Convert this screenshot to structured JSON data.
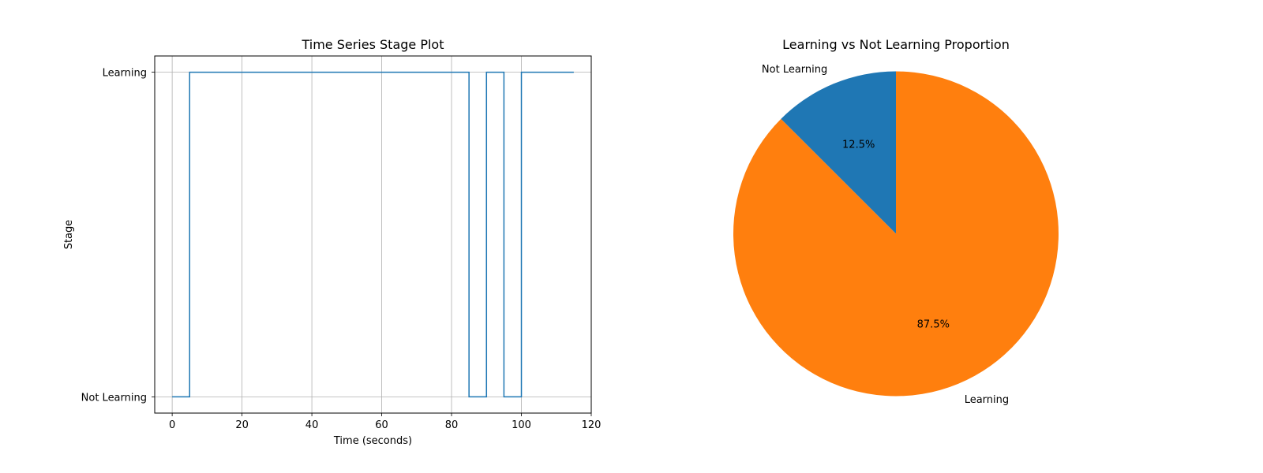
{
  "chart_data": [
    {
      "type": "line",
      "title": "Time Series Stage Plot",
      "xlabel": "Time (seconds)",
      "ylabel": "Stage",
      "xlim": [
        -5,
        120
      ],
      "ylim": [
        -0.05,
        1.05
      ],
      "xticks": [
        0,
        20,
        40,
        60,
        80,
        100,
        120
      ],
      "yticks": [
        {
          "value": 0,
          "label": "Not Learning"
        },
        {
          "value": 1,
          "label": "Learning"
        }
      ],
      "grid": true,
      "step": "post",
      "color": "#1f77b4",
      "x": [
        0,
        5,
        10,
        15,
        20,
        25,
        30,
        35,
        40,
        45,
        50,
        55,
        60,
        65,
        70,
        75,
        80,
        85,
        90,
        95,
        100,
        105,
        110,
        115
      ],
      "y": [
        0,
        1,
        1,
        1,
        1,
        1,
        1,
        1,
        1,
        1,
        1,
        1,
        1,
        1,
        1,
        1,
        1,
        0,
        1,
        0,
        1,
        1,
        1,
        1
      ]
    },
    {
      "type": "pie",
      "title": "Learning vs Not Learning Proportion",
      "slices": [
        {
          "label": "Not Learning",
          "value": 12.5,
          "pct_label": "12.5%",
          "color": "#1f77b4"
        },
        {
          "label": "Learning",
          "value": 87.5,
          "pct_label": "87.5%",
          "color": "#ff7f0e"
        }
      ],
      "start_angle": 90,
      "direction": "counterclockwise"
    }
  ]
}
